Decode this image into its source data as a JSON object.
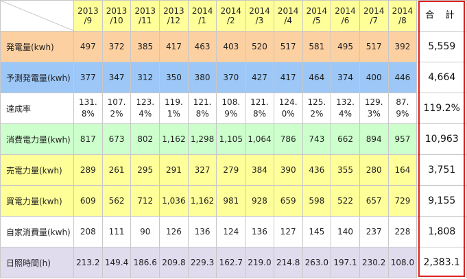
{
  "header": {
    "months": [
      "2013\n/9",
      "2013\n/10",
      "2013\n/11",
      "2013\n/12",
      "2014\n/1",
      "2014\n/2",
      "2014\n/3",
      "2014\n/4",
      "2014\n/5",
      "2014\n/6",
      "2014\n/7",
      "2014\n/8"
    ],
    "total_label": "合 計"
  },
  "rows": [
    {
      "label": "発電量(kwh)",
      "values": [
        "497",
        "372",
        "385",
        "417",
        "463",
        "403",
        "520",
        "517",
        "581",
        "495",
        "517",
        "392"
      ],
      "total": "5,559"
    },
    {
      "label": "予測発電量(kwh)",
      "values": [
        "377",
        "347",
        "312",
        "350",
        "380",
        "370",
        "427",
        "417",
        "464",
        "374",
        "400",
        "446"
      ],
      "total": "4,664"
    },
    {
      "label": "達成率",
      "values": [
        "131.\n8%",
        "107.\n2%",
        "123.\n4%",
        "119.\n1%",
        "121.\n8%",
        "108.\n9%",
        "121.\n8%",
        "124.\n0%",
        "125.\n2%",
        "132.\n4%",
        "129.\n3%",
        "87.\n9%"
      ],
      "total": "119.2%"
    },
    {
      "label": "消費電力量(kwh)",
      "values": [
        "817",
        "673",
        "802",
        "1,162",
        "1,298",
        "1,105",
        "1,064",
        "786",
        "743",
        "662",
        "894",
        "957"
      ],
      "total": "10,963"
    },
    {
      "label": "売電力量(kwh)",
      "values": [
        "289",
        "261",
        "295",
        "291",
        "327",
        "279",
        "384",
        "390",
        "436",
        "355",
        "280",
        "164"
      ],
      "total": "3,751"
    },
    {
      "label": "買電力量(kwh)",
      "values": [
        "609",
        "562",
        "712",
        "1,036",
        "1,162",
        "981",
        "928",
        "659",
        "598",
        "522",
        "657",
        "729"
      ],
      "total": "9,155"
    },
    {
      "label": "自家消費量(kwh)",
      "values": [
        "208",
        "111",
        "90",
        "126",
        "136",
        "124",
        "136",
        "127",
        "145",
        "140",
        "237",
        "228"
      ],
      "total": "1,808"
    },
    {
      "label": "日照時間(h)",
      "values": [
        "213.2",
        "149.4",
        "186.6",
        "209.8",
        "229.3",
        "162.7",
        "219.0",
        "214.8",
        "263.0",
        "197.1",
        "230.2",
        "108.0"
      ],
      "total": "2,383.1"
    }
  ]
}
